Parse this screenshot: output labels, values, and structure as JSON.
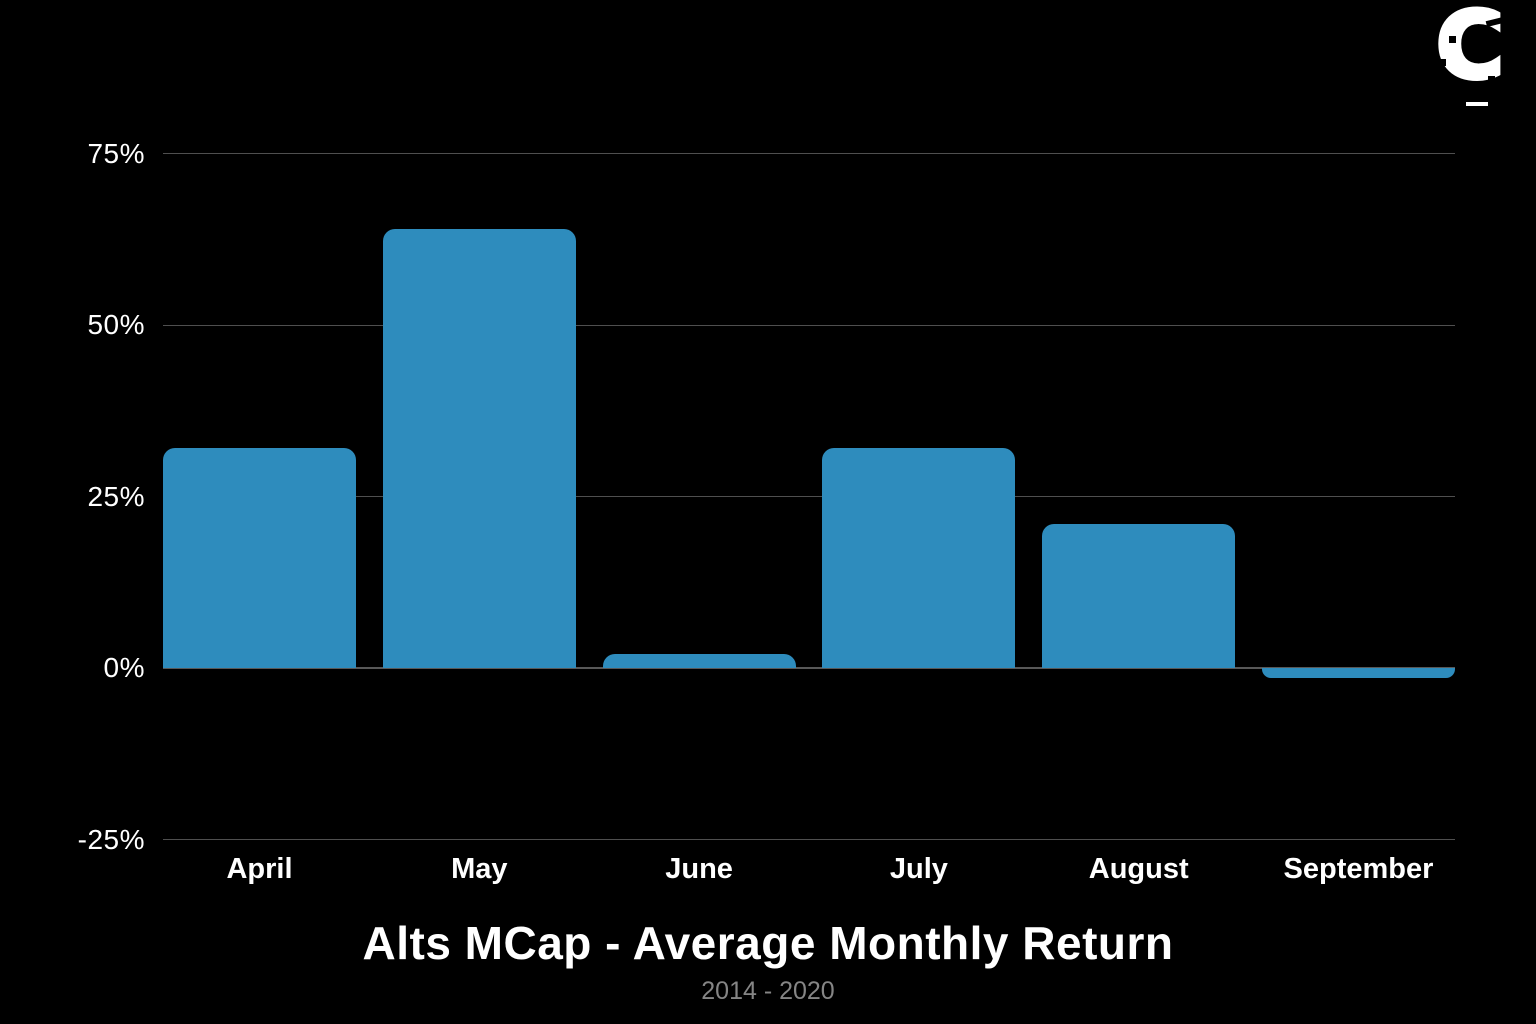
{
  "brand": {
    "logo_letter": "C"
  },
  "chart_data": {
    "type": "bar",
    "title": "Alts MCap - Average Monthly Return",
    "subtitle": "2014 -  2020",
    "categories": [
      "April",
      "May",
      "June",
      "July",
      "August",
      "September"
    ],
    "values": [
      32,
      64,
      2,
      32,
      21,
      -1.5
    ],
    "yticks": [
      {
        "value": 75,
        "label": "75%"
      },
      {
        "value": 50,
        "label": "50%"
      },
      {
        "value": 25,
        "label": "25%"
      },
      {
        "value": 0,
        "label": "0%"
      },
      {
        "value": -25,
        "label": "-25%"
      }
    ],
    "ylim": [
      -25,
      75
    ],
    "xlabel": "",
    "ylabel": "",
    "grid": true,
    "legend": false,
    "colors": {
      "bar": "#2e8cbd",
      "grid": "#4f4f4f",
      "zero_line": "#585858",
      "background": "#000000",
      "text": "#ffffff",
      "subtitle_text": "#858585",
      "logo": "#ffffff"
    }
  }
}
